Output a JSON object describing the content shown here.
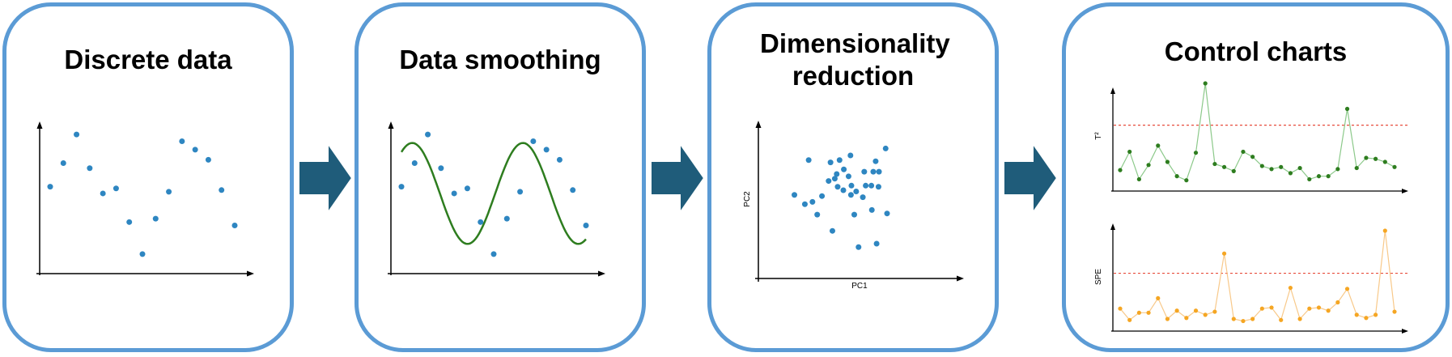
{
  "steps": [
    {
      "title": "Discrete data"
    },
    {
      "title": "Data smoothing"
    },
    {
      "title": "Dimensionality reduction"
    },
    {
      "title": "Control charts"
    }
  ],
  "colors": {
    "panel_border": "#5b9bd5",
    "arrow_fill": "#1f5c7a",
    "point": "#2e86c1",
    "curve": "#2e7d1f",
    "t2_series": "#2e7d1f",
    "spe_series": "#f5a623",
    "control_limit": "#e74c3c"
  },
  "discrete_points": {
    "x": [
      1,
      2,
      3,
      4,
      5,
      6,
      7,
      8,
      9,
      10,
      11,
      12,
      13,
      14,
      15
    ],
    "y": [
      4.2,
      5.6,
      7.3,
      5.3,
      3.8,
      4.1,
      2.1,
      0.2,
      2.3,
      3.9,
      6.9,
      6.4,
      5.8,
      4.0,
      1.9
    ]
  },
  "scatter": {
    "xlabel": "PC1",
    "ylabel": "PC2",
    "points": [
      [
        0.6,
        4.9
      ],
      [
        3.6,
        7.9
      ],
      [
        5.4,
        3.2
      ],
      [
        6.4,
        4.8
      ],
      [
        8.6,
        1.8
      ],
      [
        2.8,
        4.1
      ],
      [
        4.4,
        4.3
      ],
      [
        7.8,
        6.1
      ],
      [
        12.4,
        8.3
      ],
      [
        12.0,
        6.5
      ],
      [
        10.1,
        7.9
      ],
      [
        8.2,
        7.7
      ],
      [
        11.0,
        7.1
      ],
      [
        9.5,
        6.7
      ],
      [
        9.1,
        6.3
      ],
      [
        9.7,
        5.6
      ],
      [
        10.9,
        5.3
      ],
      [
        12.5,
        4.9
      ],
      [
        13.2,
        3.2
      ],
      [
        15.0,
        4.7
      ],
      [
        16.9,
        3.6
      ],
      [
        15.6,
        5.7
      ],
      [
        15.3,
        6.9
      ],
      [
        17.2,
        6.9
      ],
      [
        18.4,
        6.9
      ],
      [
        18.3,
        5.6
      ],
      [
        16.8,
        5.7
      ],
      [
        17.7,
        7.8
      ],
      [
        13.6,
        5.2
      ],
      [
        12.6,
        5.7
      ],
      [
        14.1,
        0.4
      ],
      [
        17.9,
        0.7
      ],
      [
        19.8,
        8.9
      ],
      [
        20.1,
        3.3
      ]
    ]
  },
  "control": {
    "t2": {
      "ylabel": "T²",
      "limit": 5.9,
      "values": [
        1.5,
        3.3,
        0.6,
        2.0,
        3.9,
        2.3,
        0.9,
        0.5,
        3.2,
        10.0,
        2.1,
        1.8,
        1.4,
        3.3,
        2.8,
        1.9,
        1.6,
        1.8,
        1.2,
        1.7,
        0.6,
        0.9,
        0.9,
        1.6,
        7.5,
        1.7,
        2.7,
        2.6,
        2.3,
        1.8
      ]
    },
    "spe": {
      "ylabel": "SPE",
      "limit": 5.1,
      "values": [
        1.7,
        0.6,
        1.3,
        1.3,
        2.7,
        0.7,
        1.5,
        0.8,
        1.5,
        1.1,
        1.4,
        7.0,
        0.7,
        0.5,
        0.7,
        1.7,
        1.8,
        0.6,
        3.7,
        0.7,
        1.7,
        1.8,
        1.5,
        2.3,
        3.6,
        1.1,
        0.8,
        1.1,
        9.2,
        1.4
      ]
    }
  }
}
